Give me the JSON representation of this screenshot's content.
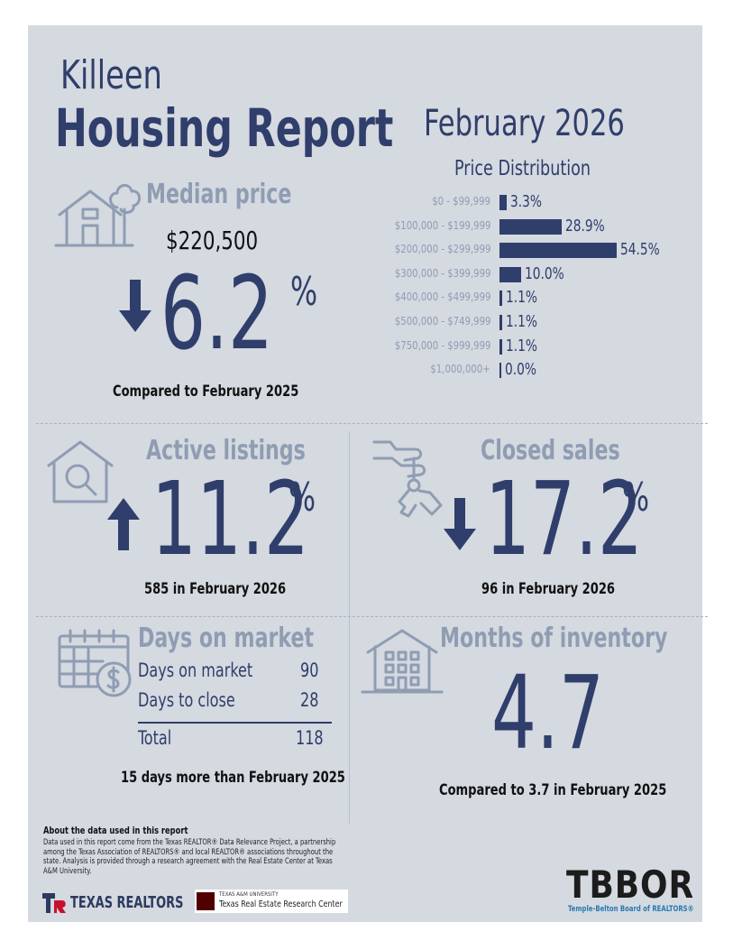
{
  "header": {
    "city": "Killeen",
    "title": "Housing Report",
    "month": "February 2026"
  },
  "median_price": {
    "heading": "Median price",
    "value": "$220,500",
    "change": "6.2",
    "pct_sign": "%",
    "direction": "down",
    "caption": "Compared to February 2025"
  },
  "price_distribution": {
    "heading": "Price Distribution",
    "rows": [
      {
        "range": "$0 - $99,999",
        "value": "3.3%"
      },
      {
        "range": "$100,000 - $199,999",
        "value": "28.9%"
      },
      {
        "range": "$200,000 - $299,999",
        "value": "54.5%"
      },
      {
        "range": "$300,000 - $399,999",
        "value": "10.0%"
      },
      {
        "range": "$400,000 - $499,999",
        "value": "1.1%"
      },
      {
        "range": "$500,000 - $749,999",
        "value": "1.1%"
      },
      {
        "range": "$750,000 - $999,999",
        "value": "1.1%"
      },
      {
        "range": "$1,000,000+",
        "value": "0.0%"
      }
    ]
  },
  "chart_data": {
    "type": "bar",
    "orientation": "horizontal",
    "title": "Price Distribution",
    "categories": [
      "$0 - $99,999",
      "$100,000 - $199,999",
      "$200,000 - $299,999",
      "$300,000 - $399,999",
      "$400,000 - $499,999",
      "$500,000 - $749,999",
      "$750,000 - $999,999",
      "$1,000,000+"
    ],
    "values": [
      3.3,
      28.9,
      54.5,
      10.0,
      1.1,
      1.1,
      1.1,
      0.0
    ],
    "value_unit": "%",
    "grid": false,
    "legend": "none",
    "bar_color": "#2f3e6b"
  },
  "active_listings": {
    "heading": "Active listings",
    "change": "11.2",
    "pct_sign": "%",
    "direction": "up",
    "caption": "585 in February 2026"
  },
  "closed_sales": {
    "heading": "Closed sales",
    "change": "17.2",
    "pct_sign": "%",
    "direction": "down",
    "caption": "96 in February 2026"
  },
  "days_on_market": {
    "heading": "Days on market",
    "rows": [
      {
        "label": "Days on market",
        "value": "90"
      },
      {
        "label": "Days to close",
        "value": "28"
      }
    ],
    "total_label": "Total",
    "total_value": "118",
    "caption": "15 days more than February 2025"
  },
  "months_inventory": {
    "heading": "Months of inventory",
    "value": "4.7",
    "caption": "Compared to 3.7 in February 2025"
  },
  "about": {
    "heading": "About the data used in this report",
    "text": "Data used in this report come from the Texas REALTOR® Data Relevance Project, a partnership among the Texas Association of REALTORS® and local REALTOR® associations throughout the state. Analysis is provided through a research agreement with the Real Estate Center at Texas A&M University."
  },
  "logos": {
    "texas_realtors": "TEXAS REALTORS",
    "tamu_small": "TEXAS A&M UNIVERSITY",
    "tamu_center": "Texas Real Estate Research Center",
    "tbbor": "TBBOR",
    "tbbor_sub": "Temple-Belton Board of REALTORS®"
  },
  "colors": {
    "navy": "#2f3e6b",
    "muted": "#8f9db3",
    "background": "#d5d9e0"
  },
  "icons": [
    "house-tree-icon",
    "arrow-down-icon",
    "house-search-icon",
    "arrow-up-icon",
    "hand-key-icon",
    "calendar-dollar-icon",
    "apartment-building-icon"
  ]
}
